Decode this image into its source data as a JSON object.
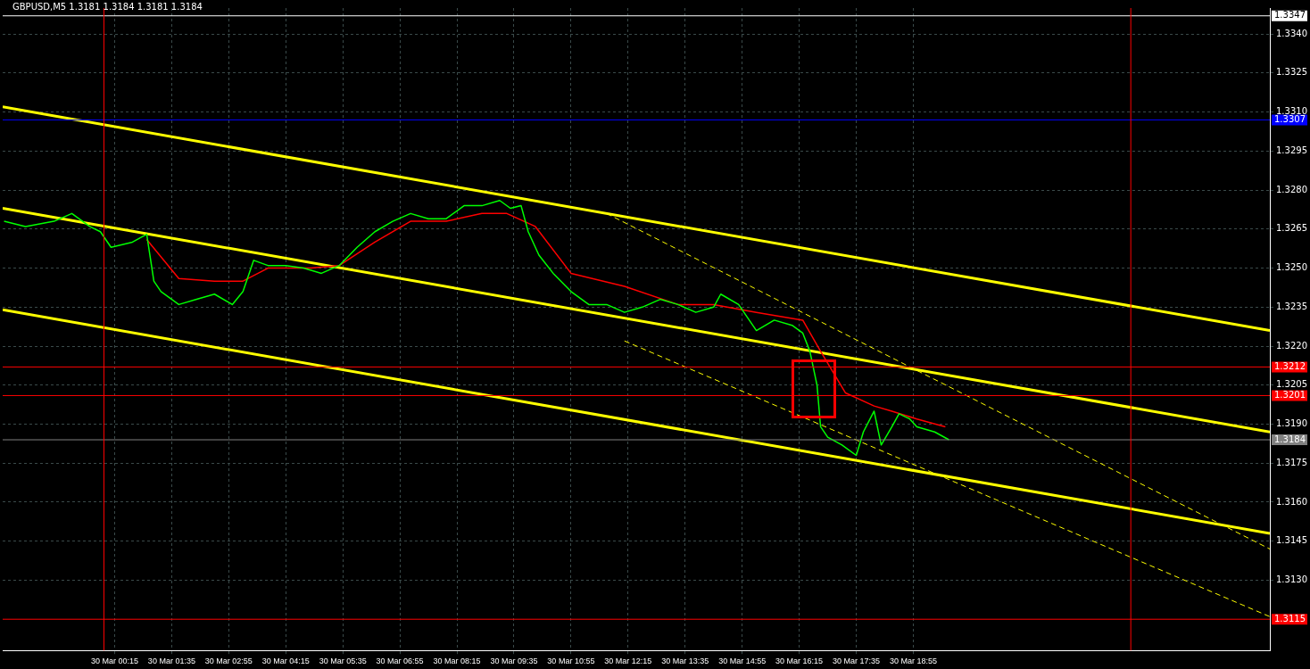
{
  "chart_data": {
    "type": "line",
    "title": "GBPUSD,M5 1.3181 1.3184 1.3181 1.3184",
    "xlim": [
      "--03-29T21:38",
      "--03-31T03:15"
    ],
    "ylim": [
      1.3103,
      1.335
    ],
    "xticks": [
      {
        "value": "--03-30T00:15",
        "label": "30 Mar 00:15"
      },
      {
        "value": "--03-30T01:35",
        "label": "30 Mar 01:35"
      },
      {
        "value": "--03-30T02:55",
        "label": "30 Mar 02:55"
      },
      {
        "value": "--03-30T04:15",
        "label": "30 Mar 04:15"
      },
      {
        "value": "--03-30T05:35",
        "label": "30 Mar 05:35"
      },
      {
        "value": "--03-30T06:55",
        "label": "30 Mar 06:55"
      },
      {
        "value": "--03-30T08:15",
        "label": "30 Mar 08:15"
      },
      {
        "value": "--03-30T09:35",
        "label": "30 Mar 09:35"
      },
      {
        "value": "--03-30T10:55",
        "label": "30 Mar 10:55"
      },
      {
        "value": "--03-30T12:15",
        "label": "30 Mar 12:15"
      },
      {
        "value": "--03-30T13:35",
        "label": "30 Mar 13:35"
      },
      {
        "value": "--03-30T14:55",
        "label": "30 Mar 14:55"
      },
      {
        "value": "--03-30T16:15",
        "label": "30 Mar 16:15"
      },
      {
        "value": "--03-30T17:35",
        "label": "30 Mar 17:35"
      },
      {
        "value": "--03-30T18:55",
        "label": "30 Mar 18:55"
      }
    ],
    "yticks": [
      {
        "value": 1.313,
        "label": "1.3130"
      },
      {
        "value": 1.3145,
        "label": "1.3145"
      },
      {
        "value": 1.316,
        "label": "1.3160"
      },
      {
        "value": 1.3175,
        "label": "1.3175"
      },
      {
        "value": 1.319,
        "label": "1.3190"
      },
      {
        "value": 1.3205,
        "label": "1.3205"
      },
      {
        "value": 1.322,
        "label": "1.3220"
      },
      {
        "value": 1.3235,
        "label": "1.3235"
      },
      {
        "value": 1.325,
        "label": "1.3250"
      },
      {
        "value": 1.3265,
        "label": "1.3265"
      },
      {
        "value": 1.328,
        "label": "1.3280"
      },
      {
        "value": 1.3295,
        "label": "1.3295"
      },
      {
        "value": 1.331,
        "label": "1.3310"
      },
      {
        "value": 1.3325,
        "label": "1.3325"
      },
      {
        "value": 1.334,
        "label": "1.3340"
      }
    ],
    "grid": true,
    "legend": false,
    "marker": "none",
    "series": [
      {
        "color": "#00ff00",
        "x": [
          "--03-29T21:40",
          "--03-29T22:10",
          "--03-29T22:50",
          "--03-29T23:15",
          "--03-29T23:40",
          "--03-29T23:55",
          "--03-30T00:10",
          "--03-30T00:40",
          "--03-30T01:00",
          "--03-30T01:10",
          "--03-30T01:20",
          "--03-30T01:45",
          "--03-30T02:10",
          "--03-30T02:35",
          "--03-30T03:00",
          "--03-30T03:15",
          "--03-30T03:30",
          "--03-30T03:50",
          "--03-30T04:15",
          "--03-30T04:40",
          "--03-30T05:05",
          "--03-30T05:30",
          "--03-30T05:55",
          "--03-30T06:20",
          "--03-30T06:45",
          "--03-30T07:10",
          "--03-30T07:35",
          "--03-30T08:00",
          "--03-30T08:25",
          "--03-30T08:50",
          "--03-30T09:15",
          "--03-30T09:30",
          "--03-30T09:45",
          "--03-30T09:55",
          "--03-30T10:10",
          "--03-30T10:30",
          "--03-30T10:55",
          "--03-30T11:20",
          "--03-30T11:45",
          "--03-30T12:10",
          "--03-30T12:35",
          "--03-30T13:00",
          "--03-30T13:25",
          "--03-30T13:50",
          "--03-30T14:15",
          "--03-30T14:25",
          "--03-30T14:50",
          "--03-30T15:15",
          "--03-30T15:40",
          "--03-30T16:05",
          "--03-30T16:20",
          "--03-30T16:30",
          "--03-30T16:40",
          "--03-30T16:45",
          "--03-30T16:55",
          "--03-30T17:15",
          "--03-30T17:35",
          "--03-30T17:45",
          "--03-30T18:00",
          "--03-30T18:10",
          "--03-30T18:25",
          "--03-30T18:35",
          "--03-30T18:50",
          "--03-30T19:00",
          "--03-30T19:25",
          "--03-30T19:45"
        ],
        "values": [
          1.3268,
          1.3266,
          1.3268,
          1.3271,
          1.3266,
          1.3264,
          1.3258,
          1.326,
          1.3263,
          1.3245,
          1.3241,
          1.3236,
          1.3238,
          1.324,
          1.3236,
          1.3241,
          1.3253,
          1.3251,
          1.3251,
          1.325,
          1.3248,
          1.3251,
          1.3258,
          1.3264,
          1.3268,
          1.3271,
          1.3269,
          1.3269,
          1.3274,
          1.3274,
          1.3276,
          1.3273,
          1.3274,
          1.3264,
          1.3255,
          1.3248,
          1.3241,
          1.3236,
          1.3236,
          1.3233,
          1.3235,
          1.3238,
          1.3236,
          1.3233,
          1.3235,
          1.324,
          1.3236,
          1.3226,
          1.323,
          1.3228,
          1.3225,
          1.3218,
          1.3205,
          1.3189,
          1.3185,
          1.3182,
          1.3178,
          1.3187,
          1.3195,
          1.3182,
          1.3189,
          1.3194,
          1.3192,
          1.3189,
          1.3187,
          1.3184
        ]
      },
      {
        "color": "#ff0000",
        "x": [
          "--03-30T01:00",
          "--03-30T01:45",
          "--03-30T02:35",
          "--03-30T03:15",
          "--03-30T03:50",
          "--03-30T04:50",
          "--03-30T05:30",
          "--03-30T06:20",
          "--03-30T07:10",
          "--03-30T08:00",
          "--03-30T08:50",
          "--03-30T09:25",
          "--03-30T10:05",
          "--03-30T10:55",
          "--03-30T12:10",
          "--03-30T13:25",
          "--03-30T14:15",
          "--03-30T15:15",
          "--03-30T16:20",
          "--03-30T16:45",
          "--03-30T17:20",
          "--03-30T18:00",
          "--03-30T18:25",
          "--03-30T19:00",
          "--03-30T19:40"
        ],
        "values": [
          1.3261,
          1.3246,
          1.3245,
          1.3245,
          1.325,
          1.325,
          1.3251,
          1.326,
          1.3268,
          1.3268,
          1.3271,
          1.3271,
          1.3266,
          1.3248,
          1.3243,
          1.3236,
          1.3236,
          1.3233,
          1.323,
          1.3218,
          1.3202,
          1.3197,
          1.3195,
          1.3192,
          1.3189
        ]
      },
      {
        "color": "#ffff00",
        "x": [
          "--03-29T21:38",
          "--03-31T03:15"
        ],
        "values": [
          1.3312,
          1.3226
        ]
      },
      {
        "color": "#ffff00",
        "x": [
          "--03-29T21:38",
          "--03-31T03:15"
        ],
        "values": [
          1.3273,
          1.3187
        ]
      },
      {
        "color": "#ffff00",
        "x": [
          "--03-29T21:38",
          "--03-31T03:15"
        ],
        "values": [
          1.3234,
          1.3148
        ]
      },
      {
        "color": "#ffff00",
        "line_style": "dashed",
        "x": [
          "--03-30T11:45",
          "--03-31T03:15"
        ],
        "values": [
          1.3271,
          1.3142
        ]
      },
      {
        "color": "#ffff00",
        "line_style": "dashed",
        "x": [
          "--03-30T12:10",
          "--03-31T03:15"
        ],
        "values": [
          1.3222,
          1.3116
        ]
      }
    ],
    "ref_lines": [
      {
        "axis": "y",
        "value": 1.3347,
        "label": "1.3347",
        "color": "#ffffff"
      },
      {
        "axis": "y",
        "value": 1.3307,
        "label": "1.3307",
        "color": "#0000ff"
      },
      {
        "axis": "y",
        "value": 1.3212,
        "label": "1.3212",
        "color": "#ff0000"
      },
      {
        "axis": "y",
        "value": 1.3201,
        "label": "1.3201",
        "color": "#ff0000"
      },
      {
        "axis": "y",
        "value": 1.3184,
        "label": "1.3184",
        "color": "#808080"
      },
      {
        "axis": "y",
        "value": 1.3115,
        "label": "1.3115",
        "color": "#ff0000"
      },
      {
        "axis": "x",
        "value": "--03-30T00:00",
        "color": "#ff0000"
      },
      {
        "axis": "x",
        "value": "--03-31T00:00",
        "color": "#ff0000"
      }
    ]
  }
}
